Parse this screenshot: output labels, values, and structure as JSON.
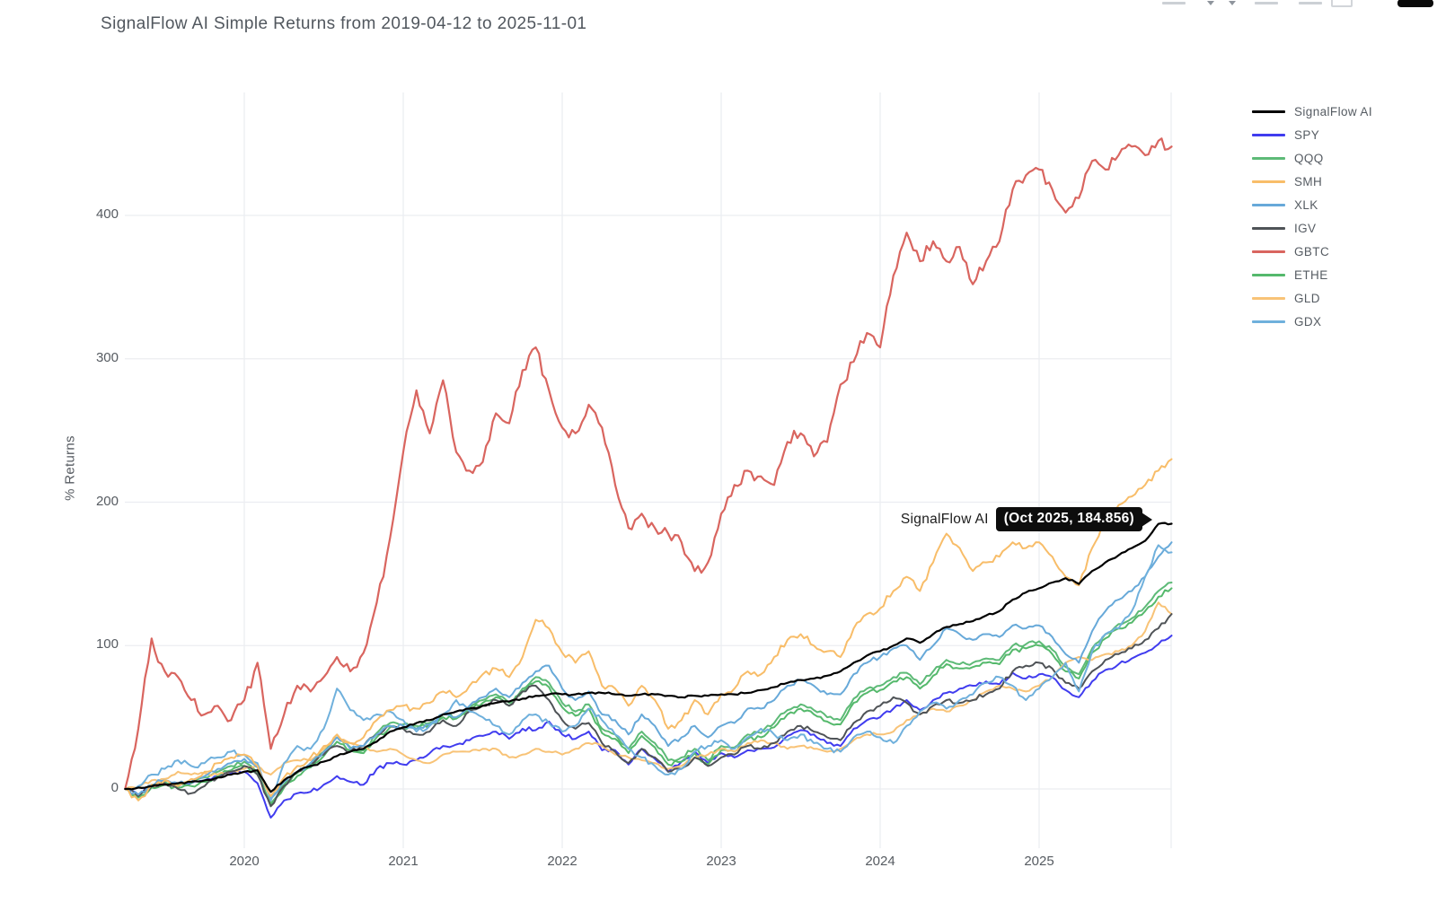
{
  "header": {
    "title": "SignalFlow AI Simple Returns from 2019-04-12 to 2025-11-01"
  },
  "y_axis": {
    "title": "% Returns",
    "tick_labels": [
      "0",
      "100",
      "200",
      "300",
      "400"
    ],
    "range_approx": [
      -41,
      486
    ]
  },
  "x_axis": {
    "tick_labels": [
      "2020",
      "2021",
      "2022",
      "2023",
      "2024",
      "2025"
    ]
  },
  "annotation": {
    "series_label": "SignalFlow AI",
    "value_label": "(Oct 2025, 184.856)"
  },
  "colors": {
    "text": "#565b61",
    "grid": "#ecedf1",
    "annotation_bg": "#0d0d0d",
    "background": "#ffffff"
  },
  "chart_data": {
    "type": "line",
    "title": "SignalFlow AI Simple Returns from 2019-04-12 to 2025-11-01",
    "xlabel": "",
    "ylabel": "% Returns",
    "grid": true,
    "legend_position": "right",
    "yticks": [
      0,
      100,
      200,
      300,
      400
    ],
    "xticks": [
      "2020",
      "2021",
      "2022",
      "2023",
      "2024",
      "2025"
    ],
    "x": [
      "2019-04",
      "2019-05",
      "2019-06",
      "2019-07",
      "2019-08",
      "2019-09",
      "2019-10",
      "2019-11",
      "2019-12",
      "2020-01",
      "2020-02",
      "2020-03",
      "2020-04",
      "2020-05",
      "2020-06",
      "2020-07",
      "2020-08",
      "2020-09",
      "2020-10",
      "2020-11",
      "2020-12",
      "2021-01",
      "2021-02",
      "2021-03",
      "2021-04",
      "2021-05",
      "2021-06",
      "2021-07",
      "2021-08",
      "2021-09",
      "2021-10",
      "2021-11",
      "2021-12",
      "2022-01",
      "2022-02",
      "2022-03",
      "2022-04",
      "2022-05",
      "2022-06",
      "2022-07",
      "2022-08",
      "2022-09",
      "2022-10",
      "2022-11",
      "2022-12",
      "2023-01",
      "2023-02",
      "2023-03",
      "2023-04",
      "2023-05",
      "2023-06",
      "2023-07",
      "2023-08",
      "2023-09",
      "2023-10",
      "2023-11",
      "2023-12",
      "2024-01",
      "2024-02",
      "2024-03",
      "2024-04",
      "2024-05",
      "2024-06",
      "2024-07",
      "2024-08",
      "2024-09",
      "2024-10",
      "2024-11",
      "2024-12",
      "2025-01",
      "2025-02",
      "2025-03",
      "2025-04",
      "2025-05",
      "2025-06",
      "2025-07",
      "2025-08",
      "2025-09",
      "2025-10",
      "2025-11"
    ],
    "series": [
      {
        "name": "SignalFlow AI",
        "color": "#000000",
        "values": [
          0,
          1,
          2,
          3,
          4,
          5,
          6,
          8,
          10,
          12,
          13,
          -2,
          6,
          12,
          16,
          19,
          23,
          26,
          28,
          33,
          40,
          43,
          46,
          48,
          52,
          54,
          56,
          58,
          60,
          61,
          63,
          65,
          66,
          66,
          66,
          67,
          67,
          66,
          65,
          66,
          66,
          65,
          64,
          65,
          65,
          66,
          66,
          67,
          69,
          71,
          74,
          76,
          77,
          79,
          82,
          88,
          93,
          96,
          100,
          105,
          102,
          108,
          113,
          115,
          117,
          121,
          124,
          132,
          137,
          140,
          144,
          147,
          143,
          152,
          158,
          163,
          168,
          173,
          184.856,
          185
        ]
      },
      {
        "name": "SPY",
        "color": "#403cef",
        "values": [
          0,
          -4,
          2,
          4,
          2,
          4,
          6,
          9,
          11,
          12,
          4,
          -20,
          -8,
          -3,
          -2,
          3,
          9,
          5,
          3,
          14,
          18,
          17,
          20,
          25,
          30,
          31,
          34,
          37,
          40,
          35,
          42,
          41,
          47,
          38,
          35,
          40,
          27,
          27,
          17,
          28,
          21,
          12,
          19,
          26,
          18,
          25,
          22,
          27,
          28,
          29,
          37,
          41,
          38,
          32,
          30,
          42,
          48,
          50,
          56,
          62,
          55,
          62,
          67,
          70,
          72,
          75,
          73,
          81,
          77,
          80,
          78,
          69,
          64,
          75,
          83,
          87,
          91,
          95,
          101,
          107
        ]
      },
      {
        "name": "QQQ",
        "color": "#5dba77",
        "values": [
          0,
          -5,
          2,
          5,
          3,
          4,
          8,
          12,
          16,
          19,
          12,
          -10,
          3,
          11,
          17,
          26,
          36,
          29,
          27,
          39,
          46,
          45,
          44,
          46,
          52,
          50,
          57,
          62,
          66,
          60,
          70,
          78,
          74,
          60,
          54,
          59,
          42,
          38,
          28,
          40,
          32,
          20,
          22,
          28,
          20,
          30,
          29,
          38,
          39,
          46,
          55,
          59,
          55,
          50,
          48,
          63,
          70,
          72,
          78,
          81,
          73,
          82,
          90,
          87,
          88,
          91,
          90,
          100,
          101,
          103,
          97,
          85,
          80,
          98,
          108,
          115,
          119,
          127,
          138,
          144
        ]
      },
      {
        "name": "SMH",
        "color": "#f8bd69",
        "values": [
          0,
          -8,
          3,
          6,
          2,
          7,
          12,
          18,
          22,
          24,
          16,
          -5,
          8,
          16,
          22,
          30,
          38,
          32,
          36,
          48,
          55,
          58,
          56,
          60,
          68,
          64,
          72,
          80,
          84,
          78,
          92,
          118,
          112,
          95,
          88,
          96,
          72,
          70,
          58,
          72,
          62,
          42,
          48,
          62,
          52,
          66,
          70,
          82,
          80,
          92,
          104,
          108,
          100,
          96,
          92,
          112,
          122,
          126,
          138,
          148,
          138,
          158,
          178,
          168,
          152,
          158,
          162,
          172,
          168,
          172,
          162,
          148,
          142,
          168,
          188,
          198,
          204,
          212,
          222,
          230
        ]
      },
      {
        "name": "XLK",
        "color": "#67a9d9",
        "values": [
          0,
          -4,
          3,
          6,
          4,
          5,
          9,
          14,
          18,
          21,
          15,
          -7,
          5,
          12,
          18,
          26,
          36,
          28,
          30,
          38,
          44,
          44,
          42,
          45,
          52,
          50,
          58,
          64,
          70,
          64,
          74,
          82,
          86,
          70,
          62,
          68,
          52,
          48,
          38,
          52,
          44,
          30,
          36,
          44,
          36,
          44,
          46,
          56,
          56,
          62,
          72,
          76,
          72,
          66,
          66,
          80,
          88,
          92,
          98,
          100,
          90,
          100,
          112,
          108,
          104,
          108,
          106,
          114,
          112,
          114,
          106,
          94,
          88,
          110,
          124,
          132,
          138,
          148,
          162,
          172
        ]
      },
      {
        "name": "IGV",
        "color": "#4f5357",
        "values": [
          0,
          -5,
          2,
          4,
          0,
          -3,
          2,
          8,
          12,
          16,
          10,
          -12,
          2,
          12,
          18,
          24,
          30,
          26,
          30,
          38,
          44,
          42,
          38,
          40,
          48,
          44,
          54,
          58,
          62,
          58,
          68,
          72,
          62,
          48,
          42,
          46,
          32,
          26,
          18,
          28,
          22,
          12,
          14,
          22,
          16,
          22,
          24,
          30,
          28,
          32,
          40,
          44,
          40,
          36,
          34,
          46,
          54,
          58,
          64,
          60,
          52,
          58,
          62,
          60,
          62,
          66,
          70,
          82,
          86,
          88,
          84,
          74,
          70,
          82,
          90,
          94,
          98,
          104,
          112,
          122
        ]
      },
      {
        "name": "GBTC",
        "color": "#d9655f",
        "values": [
          0,
          42,
          105,
          82,
          78,
          62,
          52,
          58,
          48,
          62,
          88,
          28,
          52,
          72,
          68,
          78,
          92,
          82,
          95,
          130,
          175,
          235,
          278,
          248,
          285,
          235,
          222,
          228,
          262,
          255,
          292,
          308,
          278,
          252,
          248,
          268,
          252,
          212,
          182,
          192,
          182,
          178,
          172,
          152,
          158,
          192,
          212,
          222,
          218,
          212,
          242,
          248,
          232,
          242,
          282,
          298,
          318,
          308,
          358,
          388,
          368,
          382,
          368,
          378,
          352,
          368,
          382,
          418,
          428,
          432,
          418,
          402,
          412,
          438,
          432,
          442,
          448,
          442,
          452,
          448
        ]
      },
      {
        "name": "ETHE",
        "color": "#55b96c",
        "values": [
          0,
          -6,
          1,
          3,
          1,
          2,
          5,
          9,
          13,
          16,
          10,
          -12,
          1,
          9,
          15,
          23,
          33,
          27,
          25,
          36,
          43,
          43,
          42,
          45,
          50,
          49,
          55,
          60,
          64,
          58,
          68,
          75,
          71,
          57,
          51,
          56,
          39,
          35,
          25,
          37,
          29,
          17,
          19,
          25,
          17,
          27,
          26,
          35,
          36,
          43,
          52,
          56,
          52,
          47,
          45,
          60,
          67,
          69,
          75,
          78,
          70,
          79,
          87,
          84,
          85,
          88,
          87,
          97,
          98,
          100,
          94,
          82,
          77,
          95,
          105,
          112,
          116,
          124,
          134,
          140
        ]
      },
      {
        "name": "GLD",
        "color": "#f8c377",
        "values": [
          0,
          1,
          6,
          7,
          12,
          10,
          11,
          10,
          12,
          14,
          16,
          10,
          18,
          20,
          20,
          28,
          36,
          32,
          30,
          26,
          28,
          24,
          20,
          18,
          24,
          26,
          26,
          28,
          28,
          22,
          24,
          28,
          26,
          24,
          28,
          32,
          30,
          24,
          22,
          20,
          18,
          14,
          16,
          22,
          24,
          28,
          26,
          32,
          34,
          32,
          28,
          30,
          28,
          26,
          28,
          34,
          38,
          38,
          40,
          48,
          52,
          56,
          54,
          58,
          62,
          68,
          72,
          70,
          68,
          72,
          78,
          88,
          92,
          90,
          94,
          96,
          100,
          110,
          130,
          122
        ]
      },
      {
        "name": "GDX",
        "color": "#6fb0dc",
        "values": [
          0,
          2,
          10,
          14,
          20,
          16,
          18,
          22,
          26,
          24,
          18,
          -8,
          18,
          30,
          28,
          42,
          70,
          55,
          48,
          52,
          54,
          48,
          40,
          44,
          52,
          62,
          54,
          50,
          44,
          38,
          48,
          52,
          46,
          40,
          44,
          56,
          48,
          38,
          28,
          22,
          16,
          10,
          14,
          26,
          30,
          34,
          28,
          36,
          42,
          38,
          34,
          38,
          32,
          28,
          26,
          36,
          40,
          36,
          32,
          44,
          54,
          60,
          56,
          62,
          66,
          74,
          78,
          72,
          62,
          70,
          78,
          88,
          68,
          96,
          108,
          112,
          124,
          148,
          170,
          165
        ]
      }
    ]
  }
}
